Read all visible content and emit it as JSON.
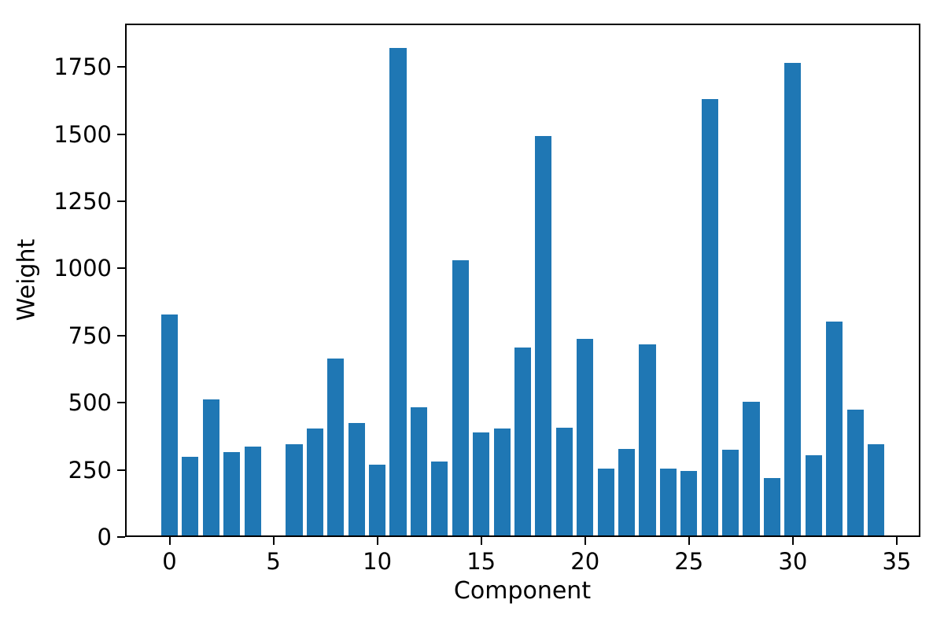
{
  "chart_data": {
    "type": "bar",
    "title": "",
    "xlabel": "Component",
    "ylabel": "Weight",
    "x": [
      0,
      1,
      2,
      3,
      4,
      5,
      6,
      7,
      8,
      9,
      10,
      11,
      12,
      13,
      14,
      15,
      16,
      17,
      18,
      19,
      20,
      21,
      22,
      23,
      24,
      25,
      26,
      27,
      28,
      29,
      30,
      31,
      32,
      33,
      34
    ],
    "values": [
      828,
      300,
      512,
      315,
      338,
      0,
      347,
      404,
      665,
      426,
      270,
      1821,
      484,
      280,
      1032,
      390,
      404,
      706,
      1492,
      408,
      738,
      256,
      329,
      718,
      256,
      247,
      1631,
      325,
      505,
      221,
      1765,
      305,
      803,
      473,
      345
    ],
    "xticks": [
      0,
      5,
      10,
      15,
      20,
      25,
      30,
      35
    ],
    "yticks": [
      0,
      250,
      500,
      750,
      1000,
      1250,
      1500,
      1750
    ],
    "xlim": [
      -2.14,
      36.14
    ],
    "ylim": [
      0,
      1912
    ],
    "bar_width": 0.8,
    "bar_color": "#1f77b4",
    "axis_color": "#000000",
    "background_color": "#ffffff",
    "grid": false,
    "legend": null
  }
}
